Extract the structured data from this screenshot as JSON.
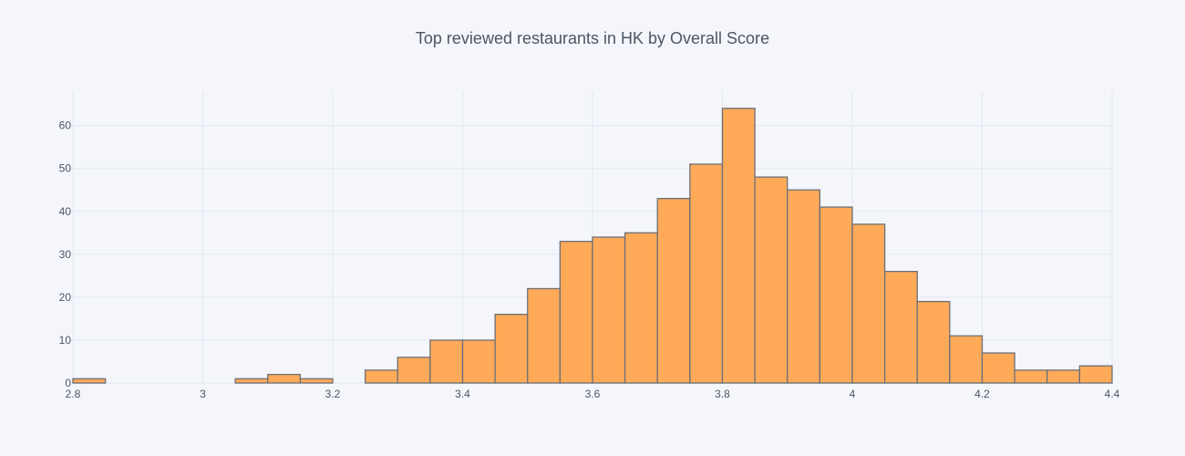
{
  "chart_data": {
    "type": "bar",
    "title": "Top reviewed restaurants in HK by Overall Score",
    "xlabel": "",
    "ylabel": "",
    "xlim": [
      2.8,
      4.4
    ],
    "ylim": [
      0,
      68
    ],
    "bin_width": 0.05,
    "x_ticks": [
      2.8,
      3.0,
      3.2,
      3.4,
      3.6,
      3.8,
      4.0,
      4.2,
      4.4
    ],
    "x_tick_labels": [
      "2.8",
      "3",
      "3.2",
      "3.4",
      "3.6",
      "3.8",
      "4",
      "4.2",
      "4.4"
    ],
    "y_ticks": [
      0,
      10,
      20,
      30,
      40,
      50,
      60
    ],
    "y_tick_labels": [
      "0",
      "10",
      "20",
      "30",
      "40",
      "50",
      "60"
    ],
    "grid": true,
    "legend": "none",
    "colors": {
      "bar_fill": "#ffa54f",
      "bar_stroke": "#6b6f78",
      "grid": "#e2e6ee",
      "background": "#f4f6fb",
      "text": "#4d5663"
    },
    "bins": [
      {
        "x0": 2.8,
        "x1": 2.85,
        "count": 1
      },
      {
        "x0": 3.05,
        "x1": 3.1,
        "count": 1
      },
      {
        "x0": 3.1,
        "x1": 3.15,
        "count": 2
      },
      {
        "x0": 3.15,
        "x1": 3.2,
        "count": 1
      },
      {
        "x0": 3.25,
        "x1": 3.3,
        "count": 3
      },
      {
        "x0": 3.3,
        "x1": 3.35,
        "count": 6
      },
      {
        "x0": 3.35,
        "x1": 3.4,
        "count": 10
      },
      {
        "x0": 3.4,
        "x1": 3.45,
        "count": 10
      },
      {
        "x0": 3.45,
        "x1": 3.5,
        "count": 16
      },
      {
        "x0": 3.5,
        "x1": 3.55,
        "count": 22
      },
      {
        "x0": 3.55,
        "x1": 3.6,
        "count": 33
      },
      {
        "x0": 3.6,
        "x1": 3.65,
        "count": 34
      },
      {
        "x0": 3.65,
        "x1": 3.7,
        "count": 35
      },
      {
        "x0": 3.7,
        "x1": 3.75,
        "count": 43
      },
      {
        "x0": 3.75,
        "x1": 3.8,
        "count": 51
      },
      {
        "x0": 3.8,
        "x1": 3.85,
        "count": 64
      },
      {
        "x0": 3.85,
        "x1": 3.9,
        "count": 48
      },
      {
        "x0": 3.9,
        "x1": 3.95,
        "count": 45
      },
      {
        "x0": 3.95,
        "x1": 4.0,
        "count": 41
      },
      {
        "x0": 4.0,
        "x1": 4.05,
        "count": 37
      },
      {
        "x0": 4.05,
        "x1": 4.1,
        "count": 26
      },
      {
        "x0": 4.1,
        "x1": 4.15,
        "count": 19
      },
      {
        "x0": 4.15,
        "x1": 4.2,
        "count": 11
      },
      {
        "x0": 4.2,
        "x1": 4.25,
        "count": 7
      },
      {
        "x0": 4.25,
        "x1": 4.3,
        "count": 3
      },
      {
        "x0": 4.3,
        "x1": 4.35,
        "count": 3
      },
      {
        "x0": 4.35,
        "x1": 4.4,
        "count": 4
      }
    ]
  }
}
